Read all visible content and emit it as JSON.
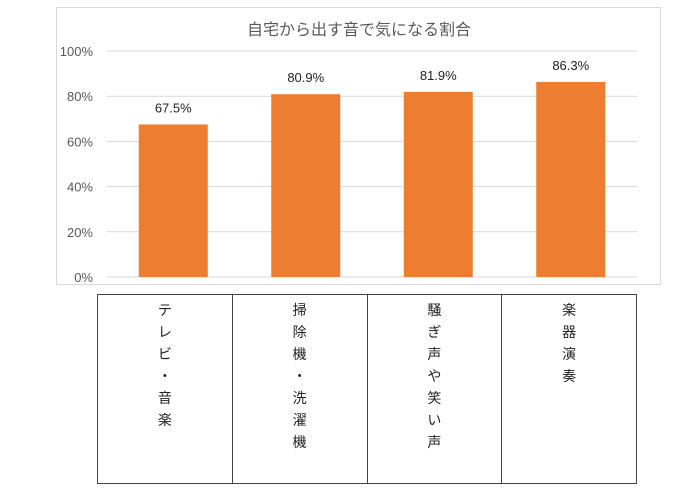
{
  "chart_data": {
    "type": "bar",
    "title": "自宅から出す音で気になる割合",
    "categories": [
      "テレビ・音楽",
      "掃除機・洗濯機",
      "騒ぎ声や笑い声",
      "楽器演奏"
    ],
    "values": [
      67.5,
      80.9,
      81.9,
      86.3
    ],
    "data_labels": [
      "67.5%",
      "80.9%",
      "81.9%",
      "86.3%"
    ],
    "ylim": [
      0,
      100
    ],
    "yticks": [
      "0%",
      "20%",
      "40%",
      "60%",
      "80%",
      "100%"
    ],
    "grid": true,
    "bar_color": "#ed7d31",
    "xlabel": "",
    "ylabel": ""
  }
}
